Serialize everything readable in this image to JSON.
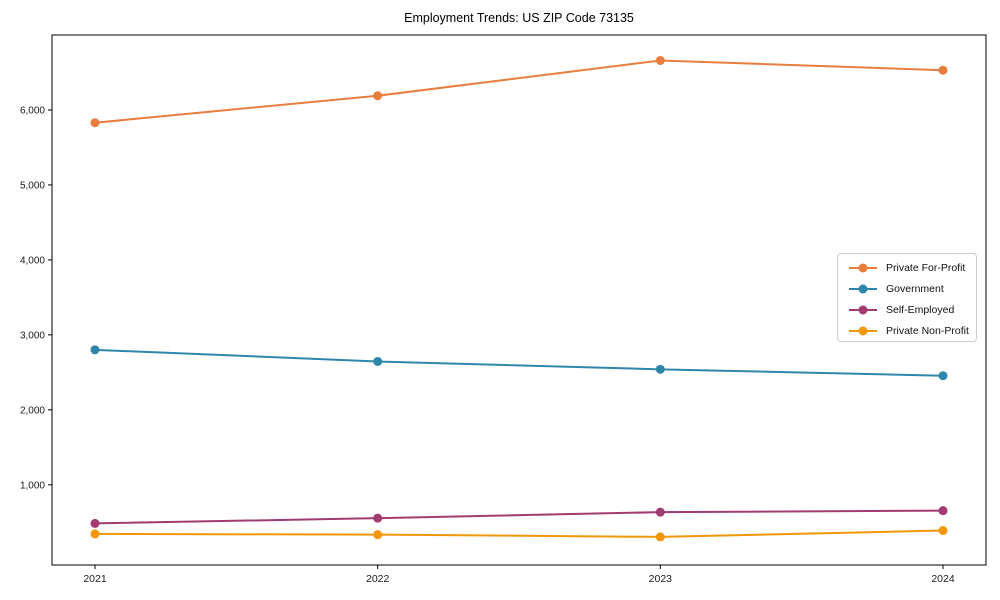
{
  "chart_data": {
    "type": "line",
    "title": "Employment Trends: US ZIP Code 73135",
    "x_tick_labels": [
      "2021",
      "2022",
      "2023",
      "2024"
    ],
    "y_ticks": [
      1000,
      2000,
      3000,
      4000,
      5000,
      6000
    ],
    "y_tick_labels": [
      "1,000",
      "2,000",
      "3,000",
      "4,000",
      "5,000",
      "6,000"
    ],
    "ylim": [
      -70,
      7000
    ],
    "grid": false,
    "legend_position": "middle-right",
    "axis_color": "#000000",
    "text_color": "#1a1a1a",
    "marker": "circle",
    "series": [
      {
        "name": "Private For-Profit",
        "color": "#E87D3E",
        "values": [
          5830,
          6190,
          6660,
          6530
        ]
      },
      {
        "name": "Government",
        "color": "#2E86AB",
        "values": [
          2800,
          2645,
          2540,
          2455
        ]
      },
      {
        "name": "Self-Employed",
        "color": "#A23B72",
        "values": [
          485,
          555,
          635,
          655
        ]
      },
      {
        "name": "Private Non-Profit",
        "color": "#F2960A",
        "values": [
          345,
          335,
          305,
          390
        ]
      }
    ]
  }
}
